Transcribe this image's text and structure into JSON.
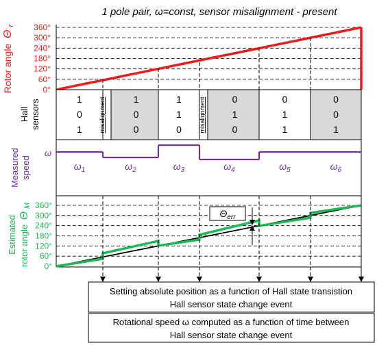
{
  "title": "1 pole pair, ω=const,  sensor misalignment - present",
  "rotor_panel": {
    "ylabel": "Rotor angle",
    "ylabel_symbol": "Θ",
    "ylabel_sub": "r",
    "ticks": [
      "0°",
      "60°",
      "120°",
      "180°",
      "240°",
      "300°",
      "360°"
    ]
  },
  "hall_panel": {
    "label_line1": "Hall",
    "label_line2": "sensors",
    "misalignment_label": "misalignment",
    "columns": [
      {
        "bits": [
          "1",
          "0",
          "1"
        ],
        "shaded": false
      },
      {
        "bits": [
          "1",
          "0",
          "0"
        ],
        "shaded": true
      },
      {
        "bits": [
          "1",
          "1",
          "0"
        ],
        "shaded": false
      },
      {
        "bits": [
          "0",
          "1",
          "0"
        ],
        "shaded": true
      },
      {
        "bits": [
          "0",
          "1",
          "1"
        ],
        "shaded": false
      },
      {
        "bits": [
          "0",
          "0",
          "1"
        ],
        "shaded": true
      }
    ]
  },
  "speed_panel": {
    "label_line1": "Measured",
    "label_line2": "speed",
    "omega_label": "ω",
    "segments": [
      {
        "symbol": "ω",
        "sub": "1"
      },
      {
        "symbol": "ω",
        "sub": "2"
      },
      {
        "symbol": "ω",
        "sub": "3"
      },
      {
        "symbol": "ω",
        "sub": "4"
      },
      {
        "symbol": "ω",
        "sub": "5"
      },
      {
        "symbol": "ω",
        "sub": "6"
      }
    ]
  },
  "estimate_panel": {
    "label_line1": "Estimated",
    "label_line2": "rotor angle",
    "label_symbol": "Θ",
    "label_sub": "M",
    "ticks": [
      "0°",
      "60°",
      "120°",
      "180°",
      "240°",
      "300°",
      "360°"
    ],
    "err_symbol": "Θ",
    "err_sub": "err"
  },
  "boxes": {
    "box1_line1": "Setting absolute position as a function of Hall state transistion",
    "box1_line2": "Hall sensor state change event",
    "box2_line1": "Rotational speed ω computed as a function of time between",
    "box2_line2": "Hall sensor state change event"
  },
  "colors": {
    "rotor": "#ee1c1c",
    "speed": "#7030a0",
    "estimate": "#1db954",
    "shade": "#d9d9d9"
  }
}
